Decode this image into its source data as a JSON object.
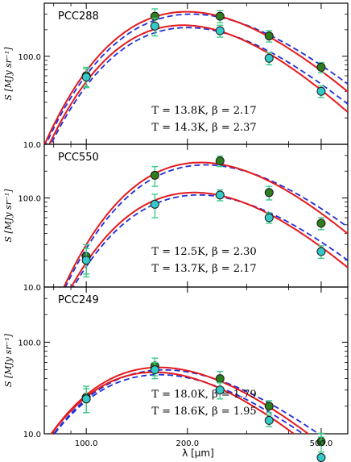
{
  "chart_data": {
    "type": "line",
    "x_scale": "log",
    "y_scale": "log",
    "shared_xlabel": "λ [μm]",
    "x_ticks": [
      100,
      200,
      500
    ],
    "x_tick_labels": [
      "100.0",
      "200.0",
      "500.0"
    ],
    "xlim": [
      75,
      600
    ],
    "ylabel": "S [MJy sr⁻¹]",
    "colors": {
      "red_fit": "#e41a1c",
      "blue_fit": "#1f2fd6",
      "green_point": "#2e7d1e",
      "cyan_point": "#33c9c9",
      "errorbar": "#3ec98a"
    },
    "panels": [
      {
        "name": "PCC288",
        "ylim": [
          10,
          400
        ],
        "y_tick_labels": [
          "10.0",
          "100.0"
        ],
        "fit_labels": [
          "T = 13.8K,  β = 2.17",
          "T = 14.3K,  β = 2.37"
        ],
        "series": [
          {
            "marker": "green",
            "x": [
              100,
              160,
              250,
              350,
              500
            ],
            "y": [
              60,
              285,
              285,
              170,
              75
            ],
            "err": [
              15,
              60,
              45,
              25,
              10
            ],
            "fit_peak_lambda": 200,
            "fit_peak_value": 320,
            "beta": 2.2
          },
          {
            "marker": "cyan",
            "x": [
              100,
              160,
              250,
              350,
              500
            ],
            "y": [
              58,
              220,
              195,
              95,
              40
            ],
            "err": [
              14,
              50,
              30,
              15,
              6
            ],
            "fit_peak_lambda": 195,
            "fit_peak_value": 225,
            "beta": 2.4
          }
        ]
      },
      {
        "name": "PCC550",
        "ylim": [
          10,
          400
        ],
        "y_tick_labels": [
          "10.0",
          "100.0"
        ],
        "fit_labels": [
          "T = 12.5K,  β = 2.30",
          "T = 13.7K,  β = 2.17"
        ],
        "series": [
          {
            "marker": "green",
            "x": [
              100,
              160,
              250,
              350,
              500
            ],
            "y": [
              22,
              180,
              260,
              115,
              52
            ],
            "err": [
              8,
              45,
              35,
              20,
              8
            ],
            "fit_peak_lambda": 220,
            "fit_peak_value": 250,
            "beta": 2.3
          },
          {
            "marker": "cyan",
            "x": [
              100,
              160,
              250,
              350,
              500
            ],
            "y": [
              20,
              85,
              108,
              60,
              25
            ],
            "err": [
              7,
              25,
              15,
              8,
              4
            ],
            "fit_peak_lambda": 210,
            "fit_peak_value": 115,
            "beta": 2.2
          }
        ]
      },
      {
        "name": "PCC249",
        "ylim": [
          10,
          400
        ],
        "y_tick_labels": [
          "10.0",
          "100.0"
        ],
        "fit_labels": [
          "T = 18.0K,  β = 1.79",
          "T = 18.6K,  β = 1.95"
        ],
        "series": [
          {
            "marker": "green",
            "x": [
              100,
              160,
              250,
              350,
              500
            ],
            "y": [
              25,
              55,
              40,
              20,
              8.2
            ],
            "err": [
              8,
              12,
              8,
              3,
              1
            ],
            "fit_peak_lambda": 165,
            "fit_peak_value": 53,
            "beta": 1.8
          },
          {
            "marker": "cyan",
            "x": [
              100,
              160,
              250,
              350,
              500
            ],
            "y": [
              24,
              50,
              30,
              14,
              5.5
            ],
            "err": [
              7,
              10,
              6,
              2,
              0.8
            ],
            "fit_peak_lambda": 160,
            "fit_peak_value": 47,
            "beta": 1.95
          }
        ]
      }
    ]
  }
}
